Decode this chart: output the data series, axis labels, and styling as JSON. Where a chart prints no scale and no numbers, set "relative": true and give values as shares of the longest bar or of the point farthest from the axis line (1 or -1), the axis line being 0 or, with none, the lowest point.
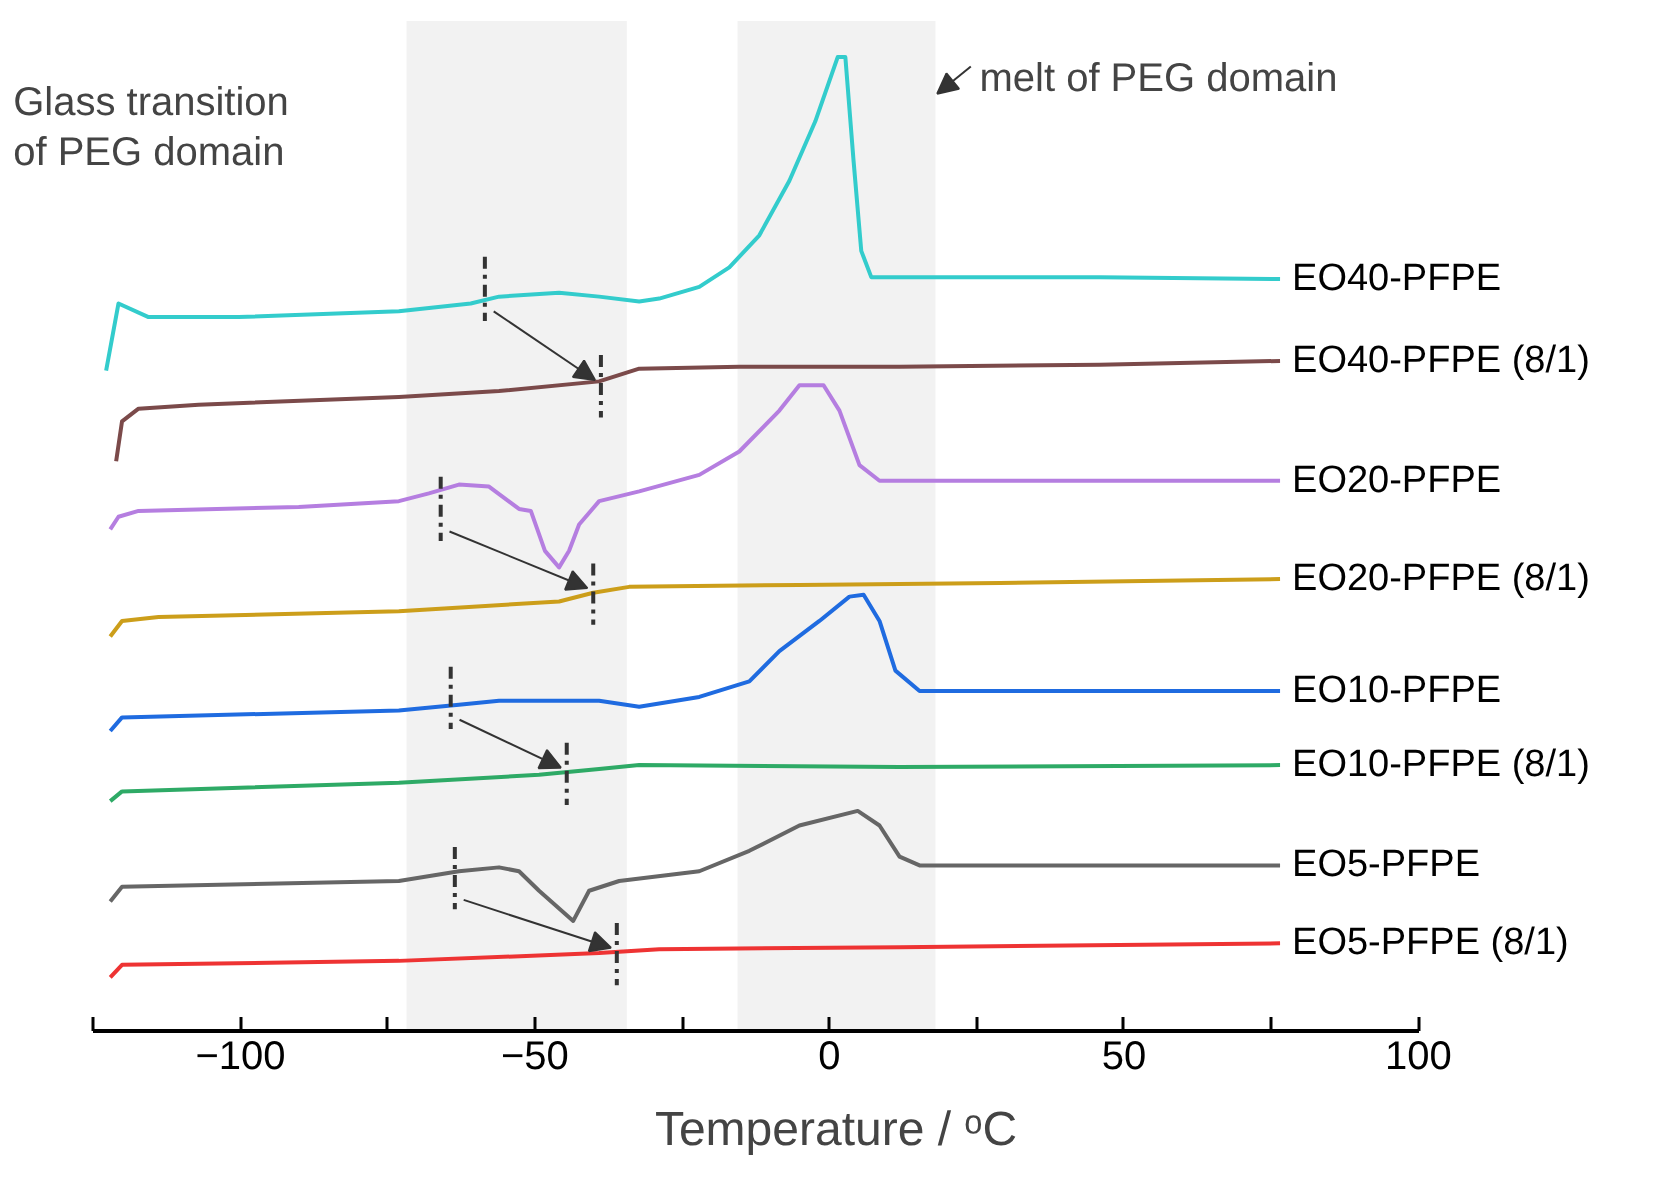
{
  "chart_data": {
    "type": "line",
    "relative": true,
    "xlabel": "Temperature / ᵒC",
    "xlim": [
      -125,
      100
    ],
    "xticks": [
      {
        "value": -125,
        "label": null
      },
      -100,
      {
        "value": -75,
        "label": null
      },
      -50,
      {
        "value": -25,
        "label": null
      },
      0,
      {
        "value": 25,
        "label": null
      },
      50,
      {
        "value": 75,
        "label": null
      },
      100
    ],
    "grid": false,
    "marker": "none",
    "line_style": "solid",
    "annotations": [
      "Glass transition\nof PEG domain",
      "melt of PEG domain"
    ],
    "bands": [
      {
        "axis": "x",
        "from": -71.8,
        "to": -34.4,
        "color": "#f2f2f2"
      },
      {
        "axis": "x",
        "from": -15.6,
        "to": 18.0,
        "color": "#f2f2f2"
      }
    ],
    "series": [
      {
        "name": "EO40-PFPE",
        "color": "#33cccc",
        "x": [
          -122.8,
          -120.7,
          -115.6,
          -100.3,
          -73.1,
          -60.9,
          -56.1,
          -45.9,
          -39.1,
          -32.3,
          -28.9,
          -22.1,
          -17.0,
          -11.9,
          -6.8,
          -2.4,
          1.4,
          2.0,
          2.7,
          4.1,
          5.4,
          7.1,
          15.3,
          45.9,
          76.5
        ],
        "values": [
          0.678,
          0.747,
          0.733,
          0.733,
          0.739,
          0.747,
          0.754,
          0.758,
          0.754,
          0.749,
          0.752,
          0.764,
          0.784,
          0.817,
          0.873,
          0.934,
          1.0,
          1.0,
          1.0,
          0.893,
          0.801,
          0.774,
          0.774,
          0.774,
          0.772
        ]
      },
      {
        "name": "EO40-PFPE (8/1)",
        "color": "#7b4a4a",
        "x": [
          -121.1,
          -120.1,
          -117.3,
          -107.1,
          -73.1,
          -56.1,
          -39.1,
          -32.3,
          -15.3,
          11.9,
          45.9,
          76.5
        ],
        "values": [
          0.585,
          0.626,
          0.639,
          0.643,
          0.651,
          0.657,
          0.667,
          0.68,
          0.682,
          0.682,
          0.684,
          0.688
        ]
      },
      {
        "name": "EO20-PFPE",
        "color": "#b57ee0",
        "x": [
          -122.1,
          -120.7,
          -117.3,
          -90.1,
          -73.1,
          -68.0,
          -62.9,
          -57.8,
          -52.7,
          -50.7,
          -48.3,
          -45.9,
          -44.2,
          -42.5,
          -39.1,
          -32.3,
          -22.1,
          -15.3,
          -8.5,
          -5.1,
          -1.0,
          1.7,
          5.1,
          8.5,
          28.9,
          76.5
        ],
        "values": [
          0.515,
          0.528,
          0.534,
          0.538,
          0.544,
          0.552,
          0.561,
          0.559,
          0.536,
          0.534,
          0.493,
          0.476,
          0.493,
          0.52,
          0.544,
          0.554,
          0.571,
          0.595,
          0.637,
          0.663,
          0.663,
          0.637,
          0.581,
          0.565,
          0.565,
          0.565
        ]
      },
      {
        "name": "EO20-PFPE (8/1)",
        "color": "#cc9e1a",
        "x": [
          -122.1,
          -120.1,
          -113.9,
          -73.1,
          -45.9,
          -40.1,
          -34.0,
          -5.1,
          28.9,
          76.5
        ],
        "values": [
          0.405,
          0.421,
          0.425,
          0.431,
          0.441,
          0.45,
          0.456,
          0.458,
          0.46,
          0.464
        ]
      },
      {
        "name": "EO10-PFPE",
        "color": "#1f6be0",
        "x": [
          -122.1,
          -120.1,
          -73.1,
          -62.9,
          -56.1,
          -45.9,
          -39.1,
          -32.3,
          -22.1,
          -13.6,
          -8.5,
          -1.7,
          3.4,
          5.8,
          8.5,
          11.2,
          15.3,
          76.5
        ],
        "values": [
          0.308,
          0.322,
          0.329,
          0.335,
          0.339,
          0.339,
          0.339,
          0.333,
          0.343,
          0.359,
          0.39,
          0.421,
          0.446,
          0.448,
          0.421,
          0.37,
          0.349,
          0.349
        ]
      },
      {
        "name": "EO10-PFPE (8/1)",
        "color": "#2eaa66",
        "x": [
          -122.1,
          -120.1,
          -73.1,
          -49.3,
          -39.1,
          -32.3,
          11.9,
          76.5
        ],
        "values": [
          0.236,
          0.246,
          0.255,
          0.263,
          0.269,
          0.273,
          0.271,
          0.273
        ]
      },
      {
        "name": "EO5-PFPE",
        "color": "#666666",
        "x": [
          -122.1,
          -120.1,
          -73.1,
          -62.9,
          -56.1,
          -52.7,
          -49.3,
          -43.5,
          -40.8,
          -35.7,
          -22.1,
          -13.6,
          -5.1,
          4.8,
          8.5,
          11.9,
          15.3,
          76.5
        ],
        "values": [
          0.133,
          0.148,
          0.154,
          0.164,
          0.168,
          0.164,
          0.144,
          0.113,
          0.144,
          0.154,
          0.164,
          0.185,
          0.211,
          0.226,
          0.211,
          0.179,
          0.17,
          0.17
        ]
      },
      {
        "name": "EO5-PFPE (8/1)",
        "color": "#ee3333",
        "x": [
          -122.1,
          -120.1,
          -73.1,
          -39.1,
          -28.9,
          11.9,
          76.5
        ],
        "values": [
          0.055,
          0.068,
          0.072,
          0.08,
          0.084,
          0.086,
          0.09
        ]
      },
      {
        "type": "line",
        "line_style": "dashed",
        "color": "#333333",
        "x": [
          -58.5,
          -58.5
        ],
        "values": [
          0.795,
          0.729
        ]
      },
      {
        "type": "line",
        "line_style": "dashed",
        "color": "#333333",
        "x": [
          -38.8,
          -38.8
        ],
        "values": [
          0.694,
          0.63
        ]
      },
      {
        "type": "line",
        "line_style": "dashed",
        "color": "#333333",
        "x": [
          -66.0,
          -66.0
        ],
        "values": [
          0.569,
          0.503
        ]
      },
      {
        "type": "line",
        "line_style": "dashed",
        "color": "#333333",
        "x": [
          -40.1,
          -40.1
        ],
        "values": [
          0.48,
          0.417
        ]
      },
      {
        "type": "line",
        "line_style": "dashed",
        "color": "#333333",
        "x": [
          -64.3,
          -64.3
        ],
        "values": [
          0.374,
          0.31
        ]
      },
      {
        "type": "line",
        "line_style": "dashed",
        "color": "#333333",
        "x": [
          -44.6,
          -44.6
        ],
        "values": [
          0.296,
          0.232
        ]
      },
      {
        "type": "line",
        "line_style": "dashed",
        "color": "#333333",
        "x": [
          -63.6,
          -63.6
        ],
        "values": [
          0.189,
          0.125
        ]
      },
      {
        "type": "line",
        "line_style": "dashed",
        "color": "#333333",
        "x": [
          -36.1,
          -36.1
        ],
        "values": [
          0.111,
          0.047
        ]
      }
    ]
  }
}
